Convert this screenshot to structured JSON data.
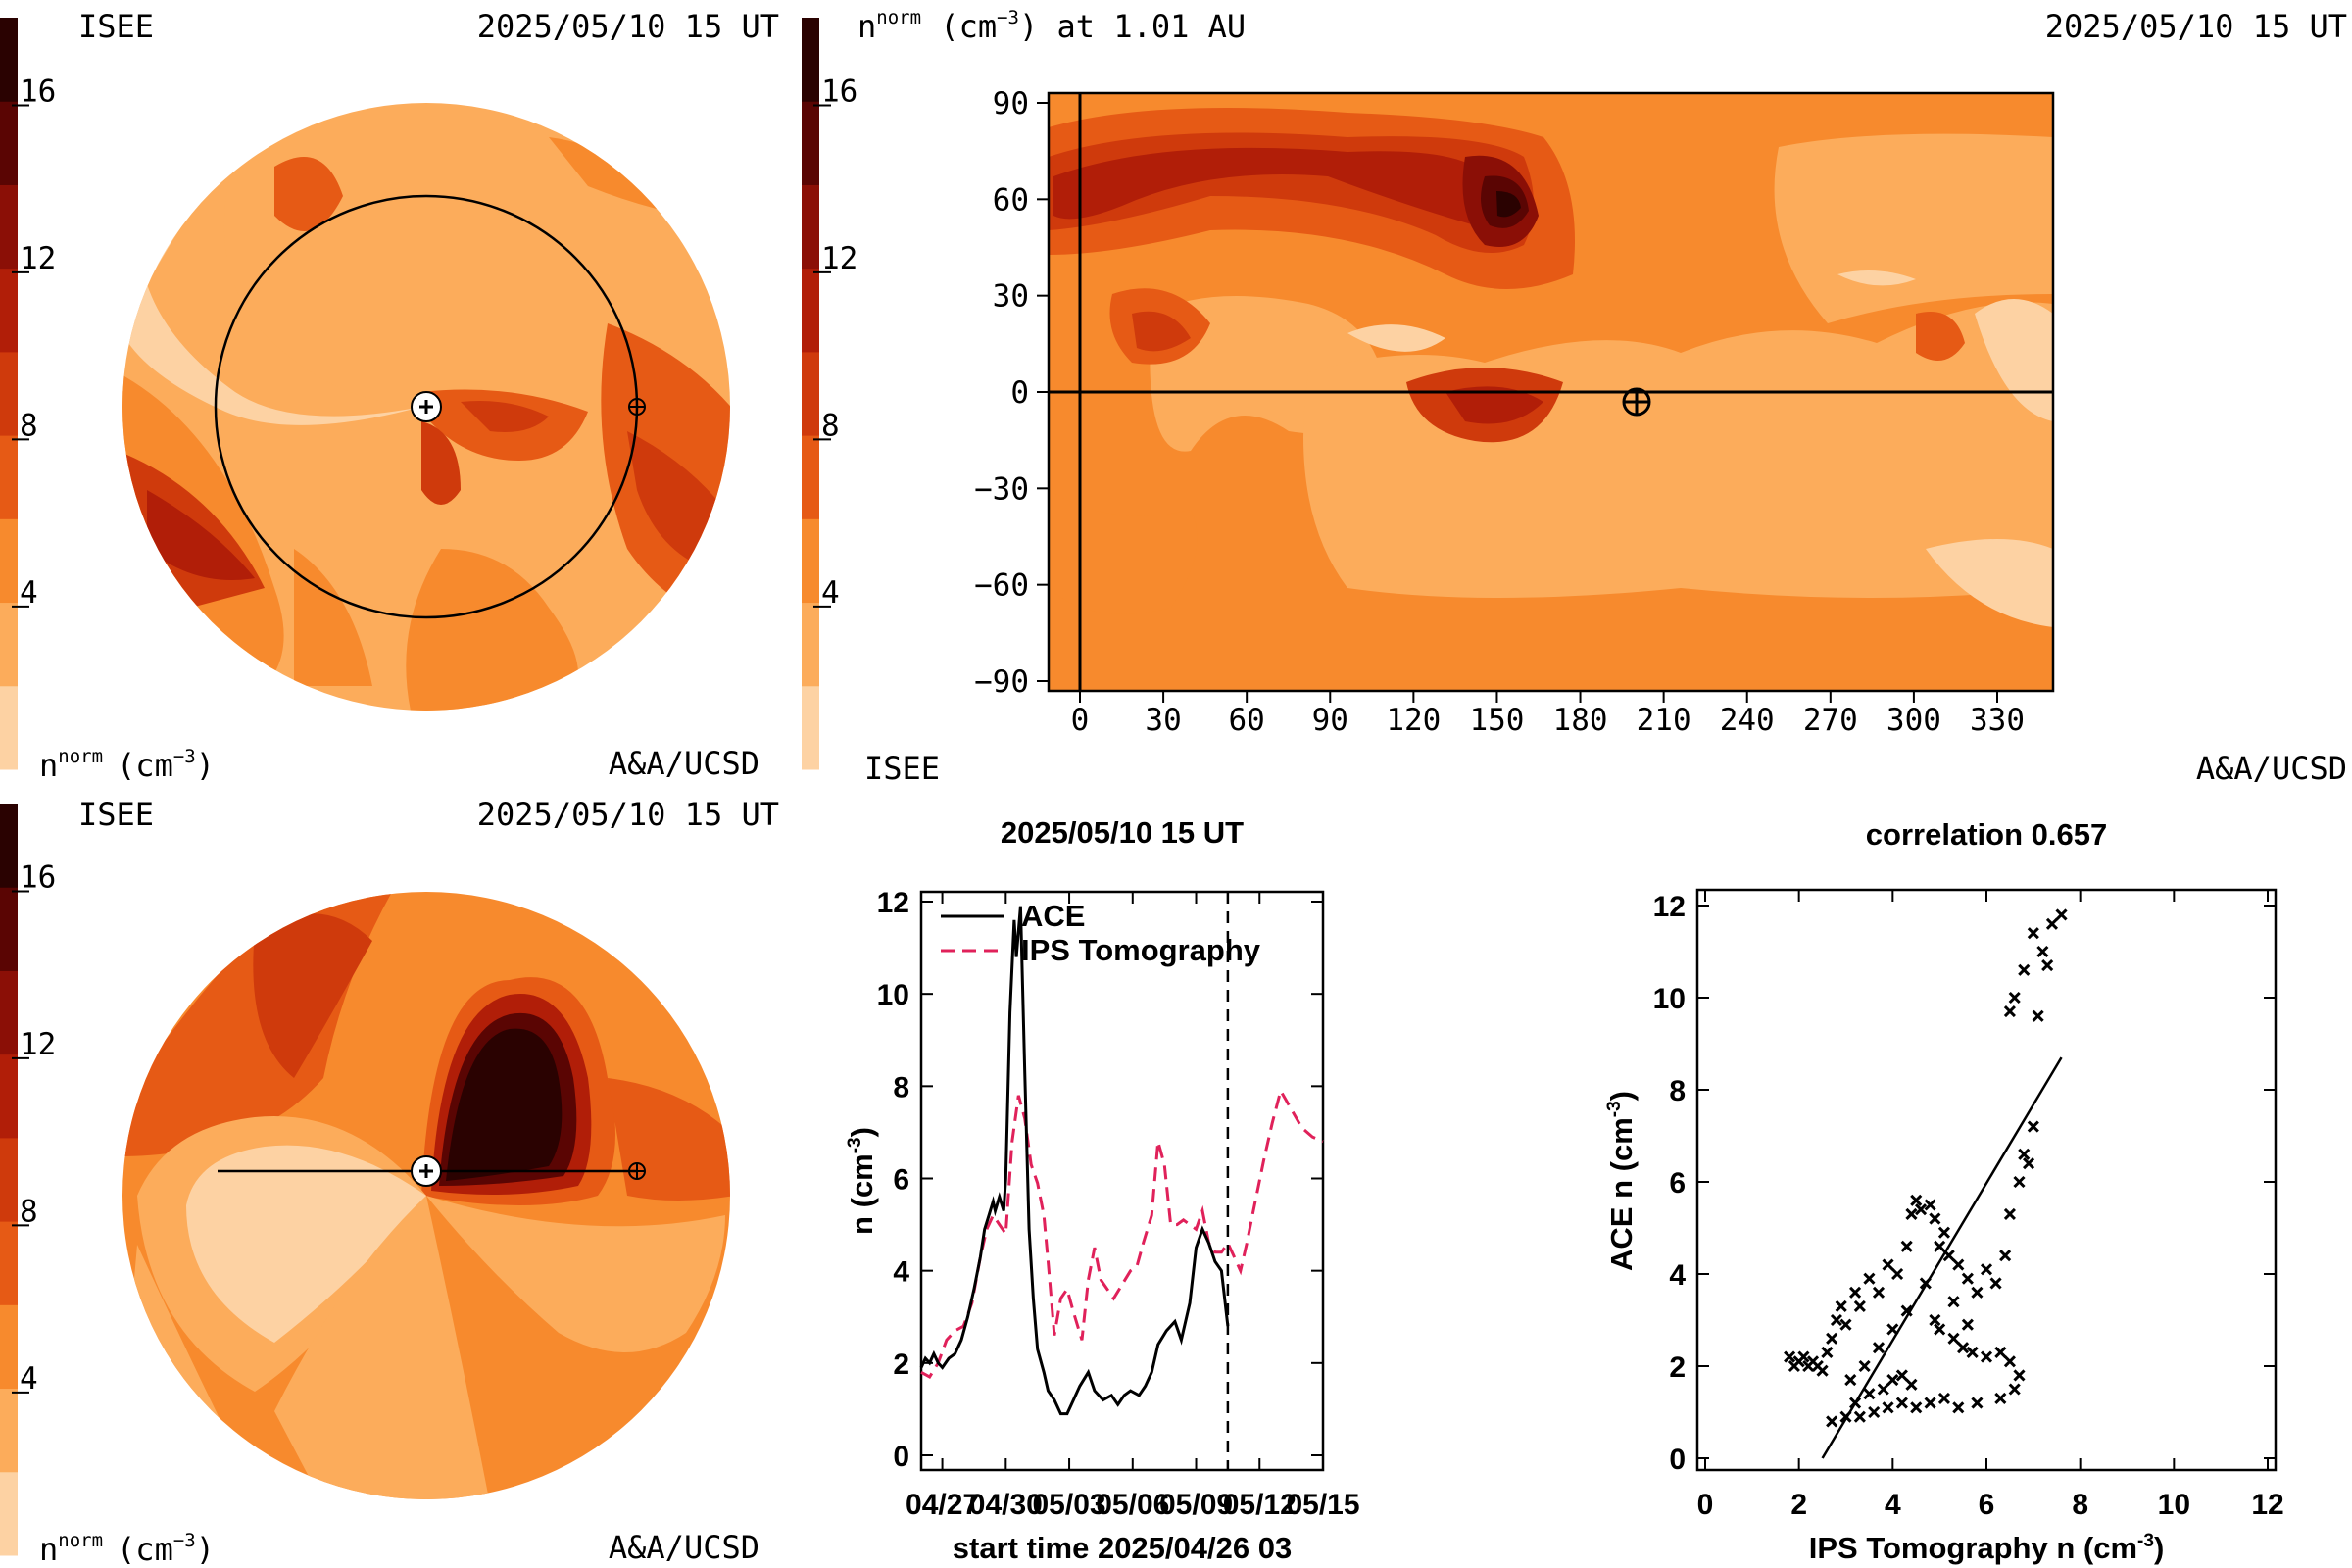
{
  "colors": {
    "scale": [
      "#fdd2a3",
      "#fcac5b",
      "#f78a2d",
      "#e65a15",
      "#cf3a0c",
      "#b11e08",
      "#8b0f06",
      "#5a0503",
      "#2a0201"
    ],
    "ace_line": "#000000",
    "ips_line": "#e0215a"
  },
  "colorbar": {
    "ticks": [
      "4",
      "8",
      "12",
      "16"
    ]
  },
  "panel_tl": {
    "left_title": "ISEE",
    "right_title": "2025/05/10 15 UT",
    "bottom_left": "nnorm (cm−3)",
    "bottom_left_main": "n",
    "bottom_left_sup": "norm",
    "bottom_left_unit": "(cm",
    "bottom_left_exp": "−3",
    "bottom_left_close": ")",
    "bottom_right": "A&A/UCSD"
  },
  "panel_bl": {
    "left_title": "ISEE",
    "right_title": "2025/05/10 15 UT",
    "bottom_left_main": "n",
    "bottom_left_sup": "norm",
    "bottom_left_unit": "(cm",
    "bottom_left_exp": "−3",
    "bottom_left_close": ")",
    "bottom_right": "A&A/UCSD"
  },
  "panel_tr": {
    "title_main": "n",
    "title_sup": "norm",
    "title_unit": " (cm",
    "title_exp": "−3",
    "title_rest": ") at 1.01 AU",
    "right_title": "2025/05/10 15 UT",
    "bottom_left": "ISEE",
    "bottom_right": "A&A/UCSD",
    "x_ticks": [
      "0",
      "30",
      "60",
      "90",
      "120",
      "150",
      "180",
      "210",
      "240",
      "270",
      "300",
      "330"
    ],
    "y_ticks": [
      "90",
      "60",
      "30",
      "0",
      "−30",
      "−60",
      "−90"
    ]
  },
  "chart_data": [
    {
      "type": "line",
      "title": "2025/05/10 15 UT",
      "xlabel": "start time 2025/04/26 03",
      "ylabel": "n (cm-3)",
      "ylabel_main": "n (cm",
      "ylabel_exp": "-3",
      "ylabel_close": ")",
      "x_tick_labels": [
        "04/27",
        "04/30",
        "05/03",
        "05/06",
        "05/09",
        "05/12",
        "05/15"
      ],
      "x_tick_days": [
        1,
        4,
        7,
        10,
        13,
        16,
        19
      ],
      "xlim": [
        0,
        19
      ],
      "ylim": [
        0,
        12
      ],
      "y_ticks": [
        "0",
        "2",
        "4",
        "6",
        "8",
        "10",
        "12"
      ],
      "now_marker_day": 14.5,
      "legend": [
        "ACE",
        "IPS Tomography"
      ],
      "series": [
        {
          "name": "ACE",
          "x": [
            0,
            0.2,
            0.4,
            0.6,
            0.8,
            1,
            1.3,
            1.6,
            1.9,
            2.2,
            2.5,
            2.8,
            3,
            3.2,
            3.4,
            3.5,
            3.7,
            3.9,
            4,
            4.2,
            4.4,
            4.5,
            4.7,
            4.9,
            5.1,
            5.3,
            5.5,
            5.8,
            6,
            6.3,
            6.6,
            6.9,
            7.2,
            7.5,
            7.9,
            8.2,
            8.6,
            9,
            9.3,
            9.6,
            9.9,
            10.3,
            10.6,
            10.9,
            11.2,
            11.6,
            12,
            12.3,
            12.7,
            13,
            13.3,
            13.6,
            13.9,
            14.2,
            14.5
          ],
          "y": [
            1.9,
            2.1,
            2.0,
            2.2,
            2.0,
            1.9,
            2.1,
            2.2,
            2.5,
            3.0,
            3.6,
            4.3,
            4.9,
            5.2,
            5.5,
            5.3,
            5.6,
            5.3,
            6.0,
            9.6,
            11.6,
            10.8,
            11.9,
            8.3,
            4.9,
            3.4,
            2.3,
            1.8,
            1.4,
            1.2,
            0.9,
            0.9,
            1.2,
            1.5,
            1.8,
            1.4,
            1.2,
            1.3,
            1.1,
            1.3,
            1.4,
            1.3,
            1.5,
            1.8,
            2.4,
            2.7,
            2.9,
            2.5,
            3.3,
            4.5,
            4.9,
            4.6,
            4.2,
            4.0,
            2.8
          ]
        },
        {
          "name": "IPS Tomography",
          "x": [
            0,
            0.4,
            0.8,
            1.2,
            1.6,
            2,
            2.4,
            2.8,
            3.1,
            3.4,
            3.7,
            4,
            4.3,
            4.6,
            4.9,
            5.2,
            5.5,
            5.8,
            6,
            6.3,
            6.6,
            6.9,
            7.2,
            7.6,
            7.9,
            8.2,
            8.5,
            8.8,
            9.1,
            9.5,
            9.9,
            10.2,
            10.5,
            10.9,
            11.2,
            11.5,
            11.8,
            12.1,
            12.4,
            12.7,
            13,
            13.3,
            13.6,
            13.9,
            14.2,
            14.5,
            14.8,
            15.1,
            15.4,
            15.8,
            16.2,
            16.6,
            17,
            17.5,
            18,
            18.5,
            19
          ],
          "y": [
            1.8,
            1.7,
            2.0,
            2.5,
            2.7,
            2.8,
            3.3,
            4.3,
            4.9,
            5.2,
            5.0,
            4.8,
            6.8,
            7.8,
            7.3,
            6.3,
            5.9,
            5.2,
            4.2,
            2.6,
            3.4,
            3.6,
            3.1,
            2.5,
            3.8,
            4.5,
            3.8,
            3.6,
            3.4,
            3.7,
            4.0,
            4.1,
            4.6,
            5.2,
            6.8,
            6.3,
            5.0,
            5.0,
            5.1,
            5.0,
            4.9,
            5.3,
            4.6,
            4.4,
            4.4,
            4.6,
            4.3,
            4.0,
            4.6,
            5.5,
            6.4,
            7.2,
            7.9,
            7.5,
            7.1,
            6.9,
            6.8
          ]
        }
      ]
    },
    {
      "type": "scatter",
      "title": "correlation 0.657",
      "xlabel": "IPS Tomography n (cm-3)",
      "xlabel_main": "IPS Tomography n (cm",
      "xlabel_exp": "-3",
      "xlabel_close": ")",
      "ylabel": "ACE n (cm-3)",
      "ylabel_main": "ACE n (cm",
      "ylabel_exp": "-3",
      "ylabel_close": ")",
      "xlim": [
        0,
        12
      ],
      "ylim": [
        0,
        12
      ],
      "x_ticks": [
        "0",
        "2",
        "4",
        "6",
        "8",
        "10",
        "12"
      ],
      "y_ticks": [
        "0",
        "2",
        "4",
        "6",
        "8",
        "10",
        "12"
      ],
      "fit_line": [
        [
          2.5,
          0
        ],
        [
          7.6,
          8.7
        ]
      ],
      "points": [
        [
          1.8,
          2.2
        ],
        [
          1.9,
          2.0
        ],
        [
          2.0,
          2.1
        ],
        [
          2.1,
          2.2
        ],
        [
          2.2,
          2.0
        ],
        [
          2.3,
          2.1
        ],
        [
          2.4,
          2.0
        ],
        [
          2.5,
          1.9
        ],
        [
          2.6,
          2.3
        ],
        [
          2.7,
          2.6
        ],
        [
          2.8,
          3.0
        ],
        [
          2.9,
          3.3
        ],
        [
          3.0,
          2.9
        ],
        [
          3.2,
          3.6
        ],
        [
          3.3,
          3.3
        ],
        [
          3.5,
          3.9
        ],
        [
          3.7,
          3.6
        ],
        [
          3.9,
          4.2
        ],
        [
          4.1,
          4.0
        ],
        [
          4.3,
          4.6
        ],
        [
          4.4,
          5.3
        ],
        [
          4.5,
          5.6
        ],
        [
          4.6,
          5.4
        ],
        [
          4.8,
          5.5
        ],
        [
          4.9,
          5.2
        ],
        [
          5.0,
          4.6
        ],
        [
          5.1,
          4.9
        ],
        [
          5.2,
          4.4
        ],
        [
          5.3,
          3.4
        ],
        [
          5.0,
          2.8
        ],
        [
          5.3,
          2.6
        ],
        [
          5.5,
          2.4
        ],
        [
          5.7,
          2.3
        ],
        [
          6.0,
          2.2
        ],
        [
          6.3,
          2.3
        ],
        [
          6.5,
          2.1
        ],
        [
          6.7,
          1.8
        ],
        [
          6.6,
          1.5
        ],
        [
          6.3,
          1.3
        ],
        [
          5.8,
          1.2
        ],
        [
          5.4,
          1.1
        ],
        [
          5.1,
          1.3
        ],
        [
          4.8,
          1.2
        ],
        [
          4.5,
          1.1
        ],
        [
          4.2,
          1.2
        ],
        [
          3.9,
          1.1
        ],
        [
          3.6,
          1.0
        ],
        [
          3.3,
          0.9
        ],
        [
          3.0,
          0.9
        ],
        [
          2.7,
          0.8
        ],
        [
          3.8,
          1.5
        ],
        [
          4.0,
          1.7
        ],
        [
          4.2,
          1.8
        ],
        [
          4.4,
          1.6
        ],
        [
          3.5,
          1.4
        ],
        [
          3.2,
          1.2
        ],
        [
          5.6,
          2.9
        ],
        [
          5.8,
          3.6
        ],
        [
          6.0,
          4.1
        ],
        [
          6.2,
          3.8
        ],
        [
          6.4,
          4.4
        ],
        [
          6.5,
          5.3
        ],
        [
          6.7,
          6.0
        ],
        [
          6.8,
          6.6
        ],
        [
          6.9,
          6.4
        ],
        [
          7.0,
          7.2
        ],
        [
          6.5,
          9.7
        ],
        [
          6.6,
          10.0
        ],
        [
          6.8,
          10.6
        ],
        [
          7.1,
          9.6
        ],
        [
          7.2,
          11.0
        ],
        [
          7.4,
          11.6
        ],
        [
          7.6,
          11.8
        ],
        [
          7.3,
          10.7
        ],
        [
          7.0,
          11.4
        ],
        [
          4.7,
          3.8
        ],
        [
          4.3,
          3.2
        ],
        [
          4.0,
          2.8
        ],
        [
          3.7,
          2.4
        ],
        [
          3.4,
          2.0
        ],
        [
          3.1,
          1.7
        ],
        [
          5.4,
          4.2
        ],
        [
          5.6,
          3.9
        ],
        [
          4.9,
          3.0
        ]
      ]
    }
  ]
}
